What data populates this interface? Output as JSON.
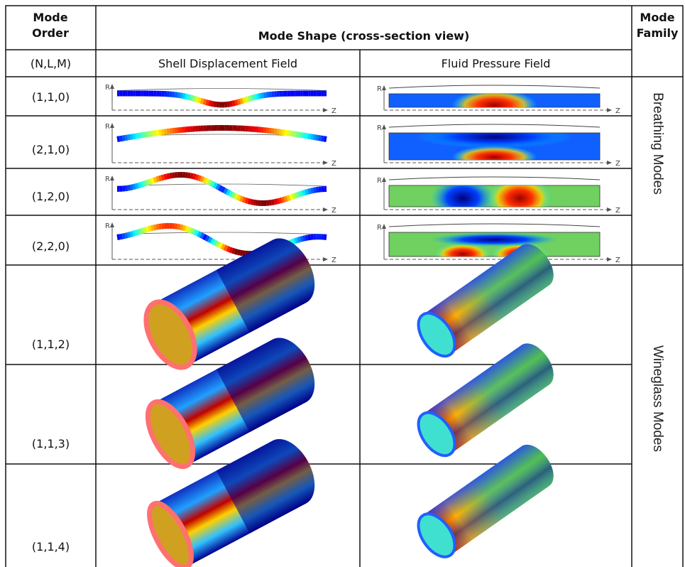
{
  "table": {
    "header": [
      "Mode Order",
      "Mode Shape (cross-section view)",
      "Mode Family"
    ],
    "subheader": [
      "(N,L,M)",
      "Shell Displacement Field",
      "Fluid Pressure Field"
    ],
    "rows": [
      "(1,1,0)",
      "(2,1,0)",
      "(1,2,0)",
      "(2,2,0)",
      "(1,1,2)",
      "(1,1,3)",
      "(1,1,4)"
    ],
    "families": [
      "Breathing Modes",
      "Wineglass Modes"
    ]
  },
  "axis_labels": {
    "r": "R",
    "z": "Z"
  }
}
